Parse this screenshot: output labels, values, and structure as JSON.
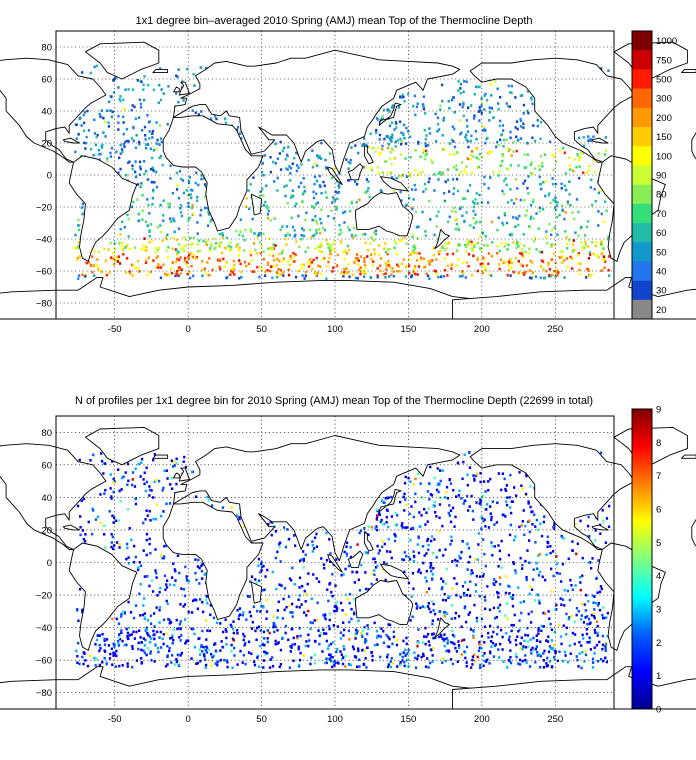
{
  "panels": [
    {
      "title": "1x1 degree bin–averaged 2010 Spring (AMJ) mean Top of the Thermocline Depth",
      "x_ticks": [
        "-50",
        "0",
        "50",
        "100",
        "150",
        "200",
        "250"
      ],
      "y_ticks": [
        "80",
        "60",
        "40",
        "20",
        "0",
        "−20",
        "−40",
        "−60",
        "−80"
      ],
      "colorbar": {
        "labels": [
          "1000",
          "750",
          "500",
          "300",
          "200",
          "150",
          "100",
          "90",
          "80",
          "70",
          "60",
          "50",
          "40",
          "30",
          "20"
        ],
        "colors": [
          "#7f0000",
          "#cc0000",
          "#ff1a00",
          "#ff6600",
          "#ff9900",
          "#ffcc00",
          "#ffff00",
          "#ccff33",
          "#88ee55",
          "#33dd77",
          "#22bbaa",
          "#1199cc",
          "#2277ee",
          "#1144cc",
          "#888888"
        ]
      }
    },
    {
      "title": "N of profiles per 1x1 degree bin for 2010 Spring (AMJ) mean Top of the Thermocline Depth  (22699 in total)",
      "x_ticks": [
        "-50",
        "0",
        "50",
        "100",
        "150",
        "200",
        "250"
      ],
      "y_ticks": [
        "80",
        "60",
        "40",
        "20",
        "0",
        "−20",
        "−40",
        "−60",
        "−80"
      ],
      "colorbar": {
        "labels": [
          "9",
          "8",
          "7",
          "6",
          "5",
          "4",
          "3",
          "2",
          "1",
          "0"
        ],
        "gradient": [
          "#00008f",
          "#0000ff",
          "#0080ff",
          "#00ffff",
          "#80ff80",
          "#ffff00",
          "#ff8000",
          "#ff0000",
          "#800000"
        ]
      }
    }
  ],
  "chart_data": [
    {
      "type": "heatmap",
      "title": "1x1 degree bin–averaged 2010 Spring (AMJ) mean Top of the Thermocline Depth",
      "xlim": [
        -90,
        290
      ],
      "ylim": [
        -90,
        90
      ],
      "grid": true,
      "colorbar_ticks": [
        1000,
        750,
        500,
        300,
        200,
        150,
        100,
        90,
        80,
        70,
        60,
        50,
        40,
        30,
        20
      ],
      "bands": [
        {
          "lat": [
            50,
            65
          ],
          "lon": [
            -65,
            -5
          ],
          "level": 3
        },
        {
          "lat": [
            50,
            60
          ],
          "lon": [
            150,
            230
          ],
          "level": 4
        },
        {
          "lat": [
            20,
            45
          ],
          "lon": [
            125,
            260
          ],
          "level": 3
        },
        {
          "lat": [
            5,
            20
          ],
          "lon": [
            130,
            280
          ],
          "level": 8
        },
        {
          "lat": [
            -10,
            5
          ],
          "lon": [
            -40,
            10
          ],
          "level": 4
        },
        {
          "lat": [
            -35,
            -10
          ],
          "lon": [
            50,
            110
          ],
          "level": 5
        },
        {
          "lat": [
            -30,
            -10
          ],
          "lon": [
            160,
            270
          ],
          "level": 6
        },
        {
          "lat": [
            -45,
            -35
          ],
          "lon": [
            -55,
            20
          ],
          "level": 9
        },
        {
          "lat": [
            -52,
            -42
          ],
          "lon": [
            30,
            180
          ],
          "level": 11
        },
        {
          "lat": [
            -60,
            -52
          ],
          "lon": [
            -70,
            200
          ],
          "level": 12
        },
        {
          "lat": [
            -58,
            -48
          ],
          "lon": [
            150,
            200
          ],
          "level": 13
        }
      ]
    },
    {
      "type": "heatmap",
      "title": "N of profiles per 1x1 degree bin for 2010 Spring (AMJ) mean Top of the Thermocline Depth  (22699 in total)",
      "xlim": [
        -90,
        290
      ],
      "ylim": [
        -90,
        90
      ],
      "grid": true,
      "total_profiles": 22699,
      "colorbar_range": [
        0,
        9
      ],
      "bands": [
        {
          "lat": [
            -65,
            65
          ],
          "lon": [
            -75,
            285
          ],
          "value": 1
        },
        {
          "lat": [
            25,
            45
          ],
          "lon": [
            125,
            145
          ],
          "value": 5
        }
      ]
    }
  ]
}
